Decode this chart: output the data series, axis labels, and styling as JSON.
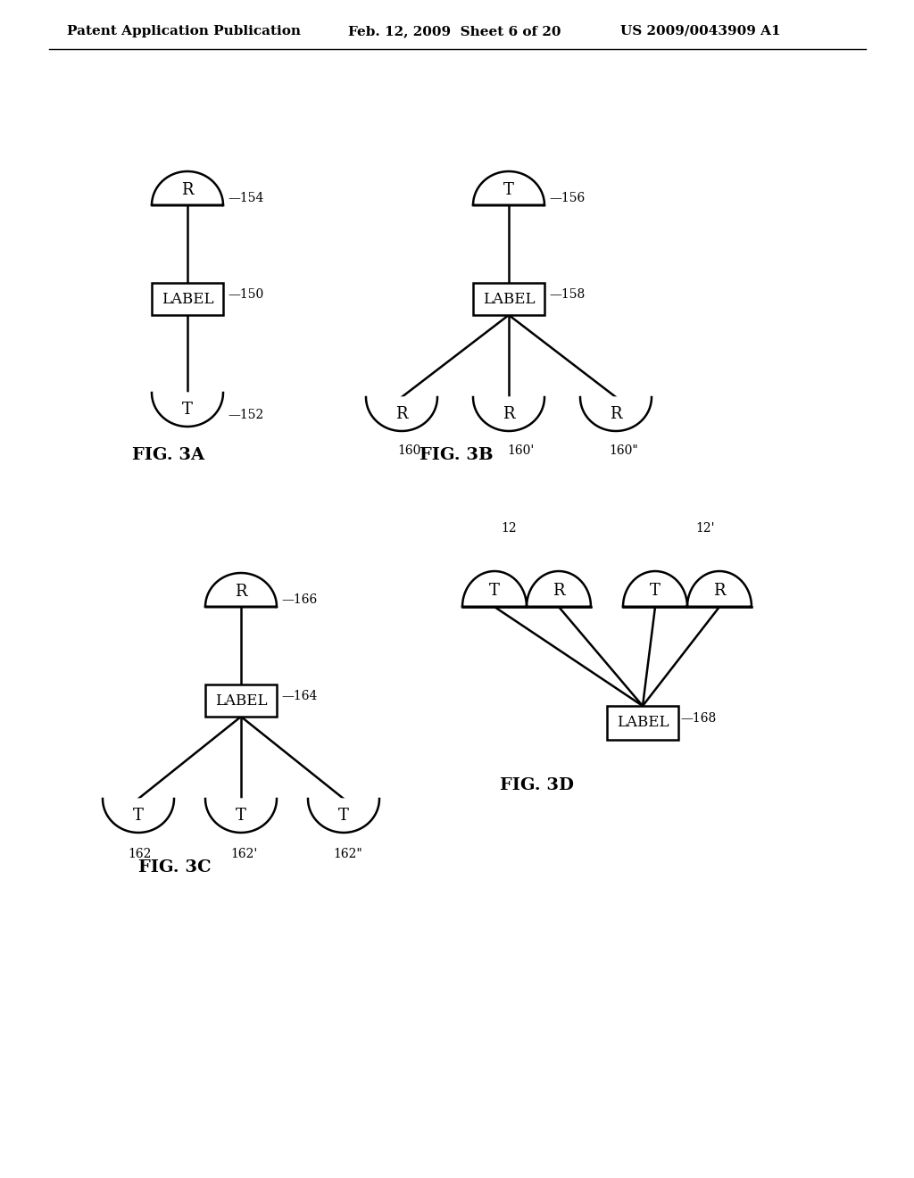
{
  "background_color": "#ffffff",
  "header_text": "Patent Application Publication",
  "header_date": "Feb. 12, 2009  Sheet 6 of 20",
  "header_patent": "US 2009/0043909 A1",
  "fig3a_label": "FIG. 3A",
  "fig3b_label": "FIG. 3B",
  "fig3c_label": "FIG. 3C",
  "fig3d_label": "FIG. 3D"
}
